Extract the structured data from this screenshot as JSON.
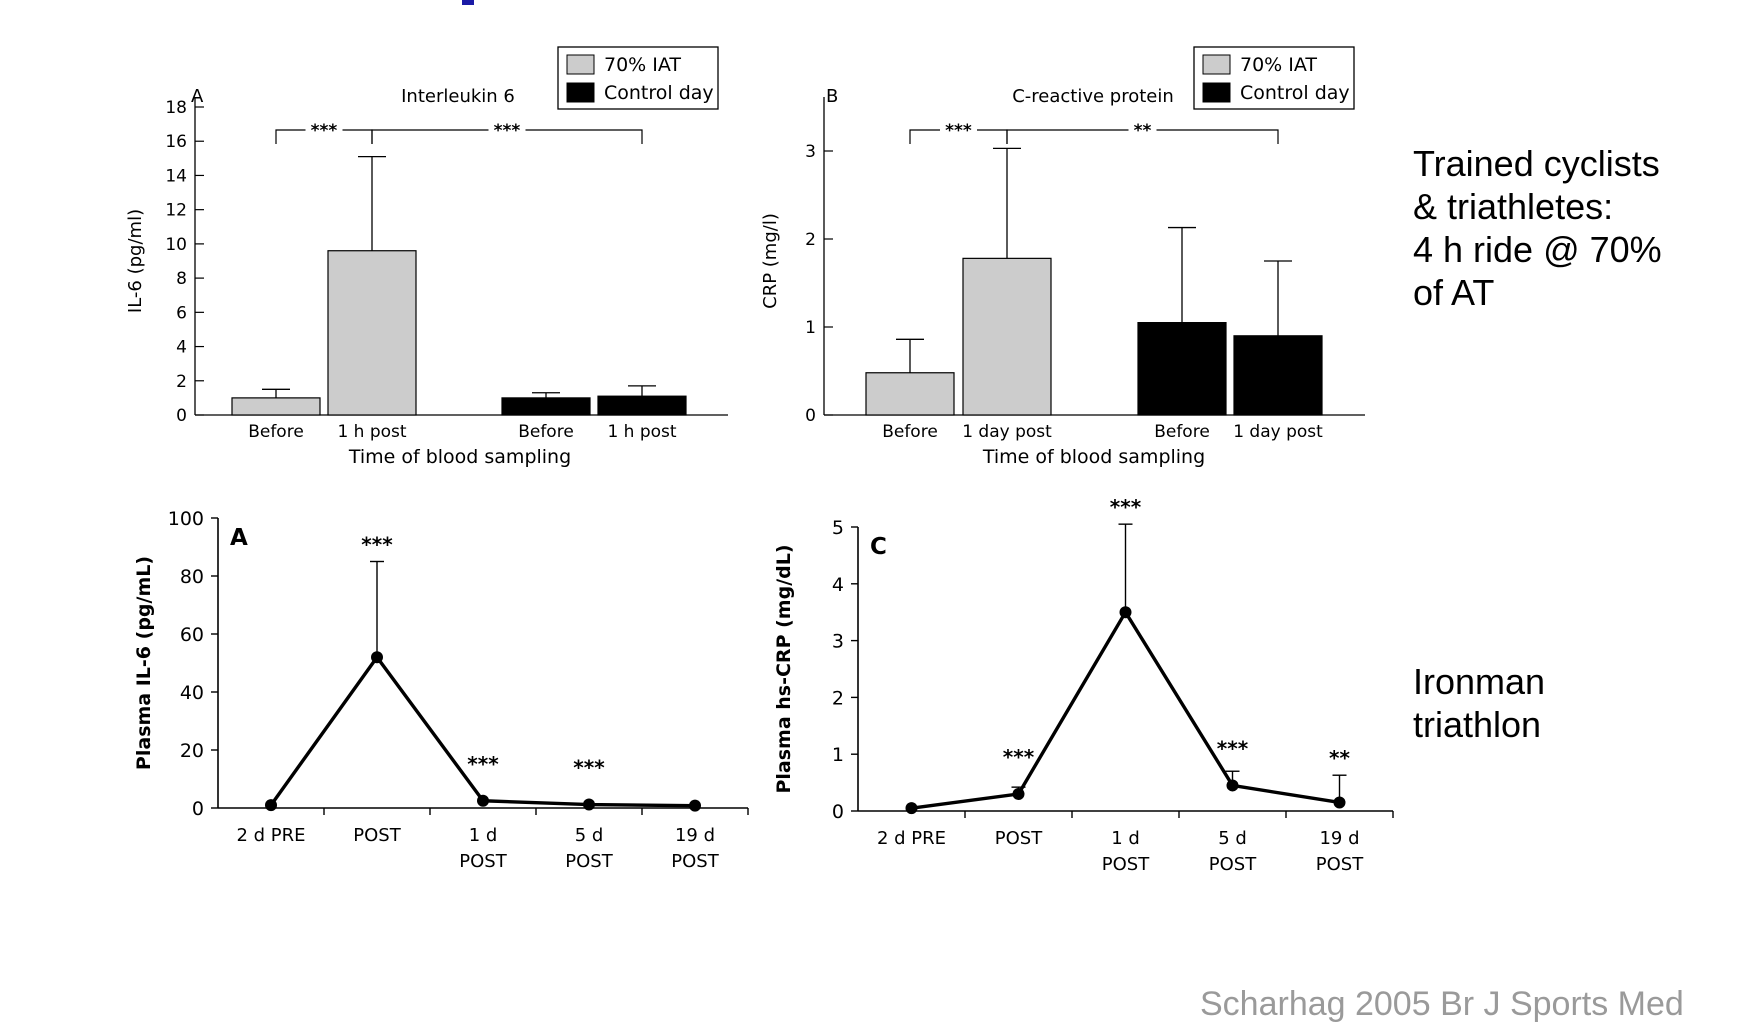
{
  "colors": {
    "light_bar": "#cccccc",
    "dark_bar": "#000000",
    "axis": "#000000",
    "accent": "#1a1aa6",
    "citation": "#9a9a9a"
  },
  "side_labels": {
    "top": "Trained cyclists\n& triathletes:\n4 h ride @ 70%\nof AT",
    "bottom": "Ironman\ntriathlon"
  },
  "citation": "Scharhag 2005 Br J Sports Med",
  "chart_data": [
    {
      "type": "bar",
      "panel": "A",
      "title": "Interleukin 6",
      "xlabel": "Time of blood sampling",
      "ylabel": "IL-6 (pg/ml)",
      "ylim": [
        0,
        18
      ],
      "yticks": [
        "0",
        "2",
        "4",
        "6",
        "8",
        "10",
        "12",
        "14",
        "16",
        "18"
      ],
      "legend": [
        "70% IAT",
        "Control day"
      ],
      "bars": [
        {
          "label": "Before",
          "series": "70% IAT",
          "value": 1.0,
          "error": 0.5
        },
        {
          "label": "1 h post",
          "series": "70% IAT",
          "value": 9.6,
          "error": 5.5
        },
        {
          "label": "Before",
          "series": "Control day",
          "value": 1.0,
          "error": 0.3
        },
        {
          "label": "1 h post",
          "series": "Control day",
          "value": 1.1,
          "error": 0.6
        }
      ],
      "significance": [
        {
          "from": 0,
          "to": 1,
          "label": "***"
        },
        {
          "from": 1,
          "to": 3,
          "label": "***"
        }
      ]
    },
    {
      "type": "bar",
      "panel": "B",
      "title": "C-reactive protein",
      "xlabel": "Time of blood sampling",
      "ylabel": "CRP (mg/l)",
      "ylim": [
        0,
        3.5
      ],
      "yticks": [
        "0",
        "1",
        "2",
        "3"
      ],
      "legend": [
        "70% IAT",
        "Control day"
      ],
      "bars": [
        {
          "label": "Before",
          "series": "70% IAT",
          "value": 0.48,
          "error": 0.38
        },
        {
          "label": "1 day post",
          "series": "70% IAT",
          "value": 1.78,
          "error": 1.25
        },
        {
          "label": "Before",
          "series": "Control day",
          "value": 1.05,
          "error": 1.08
        },
        {
          "label": "1 day post",
          "series": "Control day",
          "value": 0.9,
          "error": 0.85
        }
      ],
      "significance": [
        {
          "from": 0,
          "to": 1,
          "label": "***"
        },
        {
          "from": 1,
          "to": 3,
          "label": "**"
        }
      ]
    },
    {
      "type": "line",
      "panel": "A",
      "ylabel": "Plasma IL-6 (pg/mL)",
      "ylim": [
        0,
        100
      ],
      "yticks": [
        "0",
        "20",
        "40",
        "60",
        "80",
        "100"
      ],
      "categories": [
        "2 d PRE",
        "POST",
        "1 d\nPOST",
        "5 d\nPOST",
        "19 d\nPOST"
      ],
      "values": [
        1,
        52,
        2.5,
        1.2,
        0.8
      ],
      "errors": [
        0,
        33,
        0,
        0,
        0
      ],
      "significance": [
        "",
        "***",
        "***",
        "***",
        ""
      ]
    },
    {
      "type": "line",
      "panel": "C",
      "ylabel": "Plasma hs-CRP  (mg/dL)",
      "ylim": [
        0,
        5
      ],
      "yticks": [
        "0",
        "1",
        "2",
        "3",
        "4",
        "5"
      ],
      "categories": [
        "2 d PRE",
        "POST",
        "1 d\nPOST",
        "5 d\nPOST",
        "19 d\nPOST"
      ],
      "values": [
        0.05,
        0.3,
        3.5,
        0.45,
        0.15
      ],
      "errors": [
        0,
        0.12,
        1.55,
        0.25,
        0.48
      ],
      "significance": [
        "",
        "***",
        "***",
        "***",
        "**"
      ]
    }
  ]
}
